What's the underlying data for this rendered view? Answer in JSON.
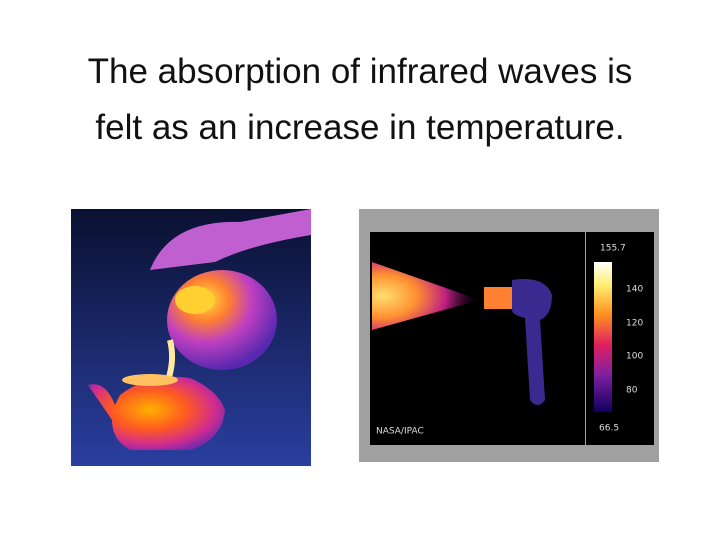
{
  "title": {
    "lines": [
      "The absorption of infrared waves is",
      "felt as an increase in temperature."
    ]
  },
  "thermal_image": {
    "scale_max": "155.7",
    "scale_ticks": [
      "140",
      "120",
      "100",
      "80"
    ],
    "scale_min": "66.5",
    "credit": "NASA/IPAC"
  }
}
